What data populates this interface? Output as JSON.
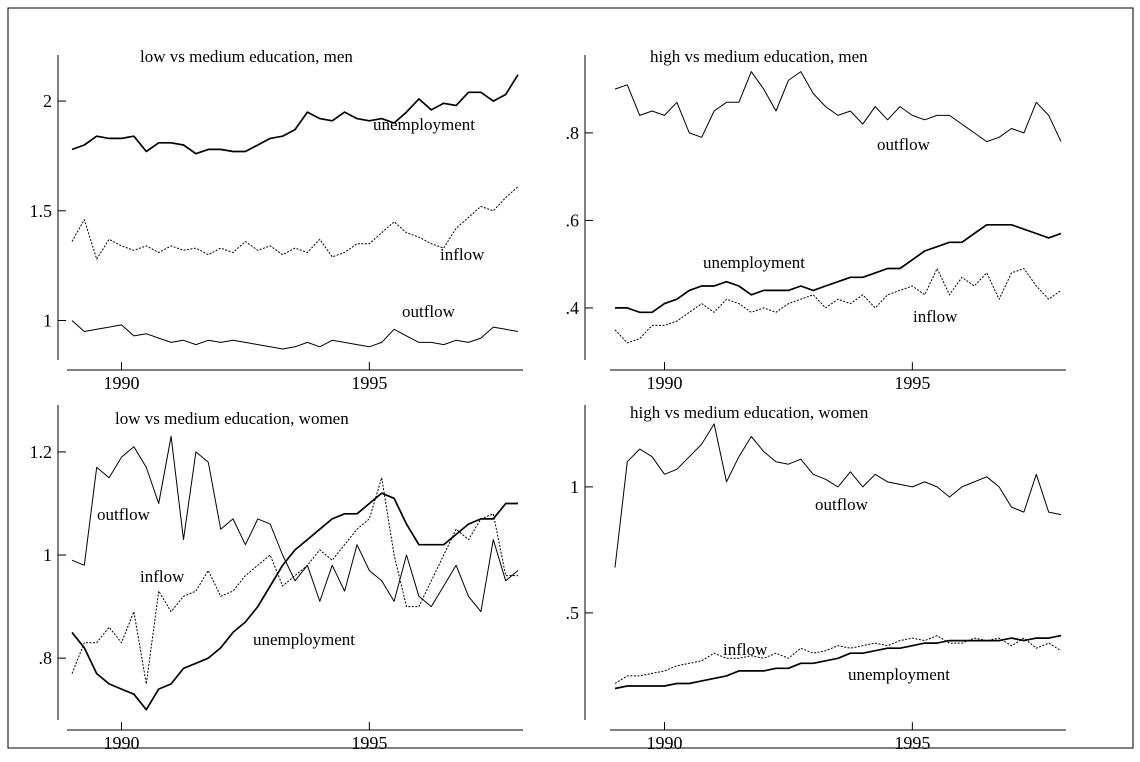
{
  "chart_data": [
    {
      "type": "line",
      "title": "low vs medium education, men",
      "x": [
        1989,
        1989.25,
        1989.5,
        1989.75,
        1990,
        1990.25,
        1990.5,
        1990.75,
        1991,
        1991.25,
        1991.5,
        1991.75,
        1992,
        1992.25,
        1992.5,
        1992.75,
        1993,
        1993.25,
        1993.5,
        1993.75,
        1994,
        1994.25,
        1994.5,
        1994.75,
        1995,
        1995.25,
        1995.5,
        1995.75,
        1996,
        1996.25,
        1996.5,
        1996.75,
        1997,
        1997.25,
        1997.5,
        1997.75,
        1998
      ],
      "xlim": [
        1988.9,
        1998.1
      ],
      "xticks": [
        1990,
        1995
      ],
      "ylim": [
        0.82,
        2.21
      ],
      "yticks": [
        1,
        1.5,
        2
      ],
      "series": [
        {
          "name": "unemployment",
          "color": "#000000",
          "style": "bold",
          "values": [
            1.78,
            1.8,
            1.84,
            1.83,
            1.83,
            1.84,
            1.77,
            1.81,
            1.81,
            1.8,
            1.76,
            1.78,
            1.78,
            1.77,
            1.77,
            1.8,
            1.83,
            1.84,
            1.87,
            1.95,
            1.92,
            1.91,
            1.95,
            1.92,
            1.91,
            1.92,
            1.9,
            1.95,
            2.01,
            1.96,
            1.99,
            1.98,
            2.04,
            2.04,
            2.0,
            2.03,
            2.12
          ]
        },
        {
          "name": "inflow",
          "color": "#000000",
          "style": "dashed",
          "values": [
            1.36,
            1.46,
            1.28,
            1.37,
            1.34,
            1.32,
            1.34,
            1.31,
            1.34,
            1.32,
            1.33,
            1.3,
            1.33,
            1.31,
            1.36,
            1.32,
            1.34,
            1.3,
            1.33,
            1.31,
            1.37,
            1.29,
            1.31,
            1.35,
            1.35,
            1.4,
            1.45,
            1.4,
            1.38,
            1.35,
            1.33,
            1.42,
            1.47,
            1.52,
            1.5,
            1.56,
            1.61
          ]
        },
        {
          "name": "outflow",
          "color": "#000000",
          "style": "solid",
          "values": [
            1.0,
            0.95,
            0.96,
            0.97,
            0.98,
            0.93,
            0.94,
            0.92,
            0.9,
            0.91,
            0.89,
            0.91,
            0.9,
            0.91,
            0.9,
            0.89,
            0.88,
            0.87,
            0.88,
            0.9,
            0.88,
            0.91,
            0.9,
            0.89,
            0.88,
            0.9,
            0.96,
            0.93,
            0.9,
            0.9,
            0.89,
            0.91,
            0.9,
            0.92,
            0.97,
            0.96,
            0.95
          ]
        }
      ]
    },
    {
      "type": "line",
      "title": "high vs medium education, men",
      "x": [
        1989,
        1989.25,
        1989.5,
        1989.75,
        1990,
        1990.25,
        1990.5,
        1990.75,
        1991,
        1991.25,
        1991.5,
        1991.75,
        1992,
        1992.25,
        1992.5,
        1992.75,
        1993,
        1993.25,
        1993.5,
        1993.75,
        1994,
        1994.25,
        1994.5,
        1994.75,
        1995,
        1995.25,
        1995.5,
        1995.75,
        1996,
        1996.25,
        1996.5,
        1996.75,
        1997,
        1997.25,
        1997.5,
        1997.75,
        1998
      ],
      "xlim": [
        1988.9,
        1998.1
      ],
      "xticks": [
        1990,
        1995
      ],
      "ylim": [
        0.281,
        0.978
      ],
      "yticks": [
        {
          "value": 0.4,
          "label": ".4"
        },
        {
          "value": 0.6,
          "label": ".6"
        },
        {
          "value": 0.8,
          "label": ".8"
        }
      ],
      "series": [
        {
          "name": "outflow",
          "color": "#000000",
          "style": "solid",
          "values": [
            0.9,
            0.91,
            0.84,
            0.85,
            0.84,
            0.87,
            0.8,
            0.79,
            0.85,
            0.87,
            0.87,
            0.94,
            0.9,
            0.85,
            0.92,
            0.94,
            0.89,
            0.86,
            0.84,
            0.85,
            0.82,
            0.86,
            0.83,
            0.86,
            0.84,
            0.83,
            0.84,
            0.84,
            0.82,
            0.8,
            0.78,
            0.79,
            0.81,
            0.8,
            0.87,
            0.84,
            0.78
          ]
        },
        {
          "name": "unemployment",
          "color": "#000000",
          "style": "bold",
          "values": [
            0.4,
            0.4,
            0.39,
            0.39,
            0.41,
            0.42,
            0.44,
            0.45,
            0.45,
            0.46,
            0.45,
            0.43,
            0.44,
            0.44,
            0.44,
            0.45,
            0.44,
            0.45,
            0.46,
            0.47,
            0.47,
            0.48,
            0.49,
            0.49,
            0.51,
            0.53,
            0.54,
            0.55,
            0.55,
            0.57,
            0.59,
            0.59,
            0.59,
            0.58,
            0.57,
            0.56,
            0.57
          ]
        },
        {
          "name": "inflow",
          "color": "#000000",
          "style": "dashed",
          "values": [
            0.35,
            0.32,
            0.33,
            0.36,
            0.36,
            0.37,
            0.39,
            0.41,
            0.39,
            0.42,
            0.41,
            0.39,
            0.4,
            0.39,
            0.41,
            0.42,
            0.43,
            0.4,
            0.42,
            0.41,
            0.43,
            0.4,
            0.43,
            0.44,
            0.45,
            0.43,
            0.49,
            0.43,
            0.47,
            0.45,
            0.48,
            0.42,
            0.48,
            0.49,
            0.45,
            0.42,
            0.44
          ]
        }
      ]
    },
    {
      "type": "line",
      "title": "low vs medium education, women",
      "x": [
        1989,
        1989.25,
        1989.5,
        1989.75,
        1990,
        1990.25,
        1990.5,
        1990.75,
        1991,
        1991.25,
        1991.5,
        1991.75,
        1992,
        1992.25,
        1992.5,
        1992.75,
        1993,
        1993.25,
        1993.5,
        1993.75,
        1994,
        1994.25,
        1994.5,
        1994.75,
        1995,
        1995.25,
        1995.5,
        1995.75,
        1996,
        1996.25,
        1996.5,
        1996.75,
        1997,
        1997.25,
        1997.5,
        1997.75,
        1998
      ],
      "xlim": [
        1988.9,
        1998.1
      ],
      "xticks": [
        1990,
        1995
      ],
      "ylim": [
        0.68,
        1.291
      ],
      "yticks": [
        {
          "value": 0.8,
          "label": ".8"
        },
        1,
        1.2
      ],
      "series": [
        {
          "name": "outflow",
          "color": "#000000",
          "style": "solid",
          "values": [
            0.99,
            0.98,
            1.17,
            1.15,
            1.19,
            1.21,
            1.17,
            1.1,
            1.23,
            1.03,
            1.2,
            1.18,
            1.05,
            1.07,
            1.02,
            1.07,
            1.06,
            1.0,
            0.95,
            0.98,
            0.91,
            0.98,
            0.93,
            1.02,
            0.97,
            0.95,
            0.91,
            1.0,
            0.92,
            0.9,
            0.94,
            0.98,
            0.92,
            0.89,
            1.03,
            0.95,
            0.97
          ]
        },
        {
          "name": "inflow",
          "color": "#000000",
          "style": "dashed",
          "values": [
            0.77,
            0.83,
            0.83,
            0.86,
            0.83,
            0.89,
            0.75,
            0.93,
            0.89,
            0.92,
            0.93,
            0.97,
            0.92,
            0.93,
            0.96,
            0.98,
            1.0,
            0.94,
            0.96,
            0.98,
            1.01,
            0.99,
            1.02,
            1.05,
            1.07,
            1.15,
            1.0,
            0.9,
            0.9,
            0.95,
            1.0,
            1.05,
            1.03,
            1.07,
            1.08,
            0.96,
            0.96
          ]
        },
        {
          "name": "unemployment",
          "color": "#000000",
          "style": "bold",
          "values": [
            0.85,
            0.82,
            0.77,
            0.75,
            0.74,
            0.73,
            0.7,
            0.74,
            0.75,
            0.78,
            0.79,
            0.8,
            0.82,
            0.85,
            0.87,
            0.9,
            0.94,
            0.98,
            1.01,
            1.03,
            1.05,
            1.07,
            1.08,
            1.08,
            1.1,
            1.12,
            1.11,
            1.06,
            1.02,
            1.02,
            1.02,
            1.04,
            1.06,
            1.07,
            1.07,
            1.1,
            1.1
          ]
        }
      ]
    },
    {
      "type": "line",
      "title": "high vs medium education, women",
      "x": [
        1989,
        1989.25,
        1989.5,
        1989.75,
        1990,
        1990.25,
        1990.5,
        1990.75,
        1991,
        1991.25,
        1991.5,
        1991.75,
        1992,
        1992.25,
        1992.5,
        1992.75,
        1993,
        1993.25,
        1993.5,
        1993.75,
        1994,
        1994.25,
        1994.5,
        1994.75,
        1995,
        1995.25,
        1995.5,
        1995.75,
        1996,
        1996.25,
        1996.5,
        1996.75,
        1997,
        1997.25,
        1997.5,
        1997.75,
        1998
      ],
      "xlim": [
        1988.9,
        1998.1
      ],
      "xticks": [
        1990,
        1995
      ],
      "ylim": [
        0.075,
        1.325
      ],
      "yticks": [
        {
          "value": 0.5,
          "label": ".5"
        },
        1
      ],
      "series": [
        {
          "name": "outflow",
          "color": "#000000",
          "style": "solid",
          "values": [
            0.68,
            1.1,
            1.15,
            1.12,
            1.05,
            1.07,
            1.12,
            1.17,
            1.25,
            1.02,
            1.12,
            1.2,
            1.14,
            1.1,
            1.09,
            1.11,
            1.05,
            1.03,
            1.0,
            1.06,
            1.0,
            1.05,
            1.02,
            1.01,
            1.0,
            1.02,
            1.0,
            0.96,
            1.0,
            1.02,
            1.04,
            1.0,
            0.92,
            0.9,
            1.05,
            0.9,
            0.89
          ]
        },
        {
          "name": "inflow",
          "color": "#000000",
          "style": "dashed",
          "values": [
            0.22,
            0.25,
            0.25,
            0.26,
            0.27,
            0.29,
            0.3,
            0.31,
            0.34,
            0.32,
            0.32,
            0.33,
            0.32,
            0.34,
            0.32,
            0.36,
            0.34,
            0.35,
            0.37,
            0.36,
            0.37,
            0.38,
            0.37,
            0.39,
            0.4,
            0.39,
            0.41,
            0.38,
            0.38,
            0.4,
            0.39,
            0.4,
            0.37,
            0.4,
            0.36,
            0.38,
            0.35
          ]
        },
        {
          "name": "unemployment",
          "color": "#000000",
          "style": "bold",
          "values": [
            0.2,
            0.21,
            0.21,
            0.21,
            0.21,
            0.22,
            0.22,
            0.23,
            0.24,
            0.25,
            0.27,
            0.27,
            0.27,
            0.28,
            0.28,
            0.3,
            0.3,
            0.31,
            0.32,
            0.34,
            0.34,
            0.35,
            0.36,
            0.36,
            0.37,
            0.38,
            0.38,
            0.39,
            0.39,
            0.39,
            0.39,
            0.39,
            0.4,
            0.39,
            0.4,
            0.4,
            0.41
          ]
        }
      ]
    }
  ]
}
